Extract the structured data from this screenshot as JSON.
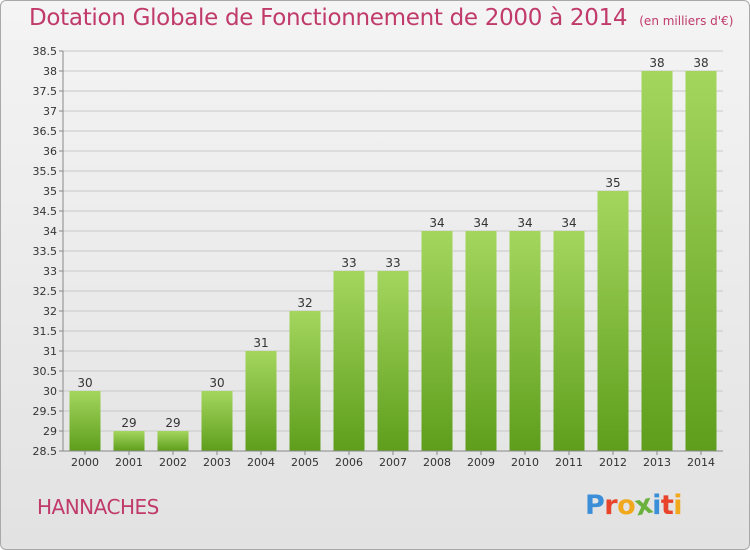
{
  "header": {
    "title": "Dotation Globale de Fonctionnement de 2000 à 2014",
    "subtitle": "(en milliers d'€)"
  },
  "footer": {
    "commune": "HANNACHES",
    "logo_letters": [
      "P",
      "r",
      "o",
      "x",
      "i",
      "t",
      "i"
    ],
    "logo_colors": [
      "#3b8fd9",
      "#e8432b",
      "#f2a81d",
      "#6ab23d",
      "#3b8fd9",
      "#e8432b",
      "#f2a81d"
    ]
  },
  "colors": {
    "bar_top": "#a4d65e",
    "bar_bottom": "#5e9e1c",
    "accent_text": "#c03a6a",
    "grid": "#c8c8c8"
  },
  "chart_data": {
    "type": "bar",
    "title": "Dotation Globale de Fonctionnement de 2000 à 2014",
    "subtitle": "(en milliers d'€)",
    "categories": [
      "2000",
      "2001",
      "2002",
      "2003",
      "2004",
      "2005",
      "2006",
      "2007",
      "2008",
      "2009",
      "2010",
      "2011",
      "2012",
      "2013",
      "2014"
    ],
    "values": [
      30,
      29,
      29,
      30,
      31,
      32,
      33,
      33,
      34,
      34,
      34,
      34,
      35,
      38,
      38
    ],
    "labels": [
      "30",
      "29",
      "29",
      "30",
      "31",
      "32",
      "33",
      "33",
      "34",
      "34",
      "34",
      "34",
      "35",
      "38",
      "38"
    ],
    "ylim": [
      28.5,
      38.5
    ],
    "yticks": [
      28.5,
      29,
      29.5,
      30,
      30.5,
      31,
      31.5,
      32,
      32.5,
      33,
      33.5,
      34,
      34.5,
      35,
      35.5,
      36,
      36.5,
      37,
      37.5,
      38,
      38.5
    ],
    "ytick_labels": [
      "28.5",
      "29",
      "29.5",
      "30",
      "30.5",
      "31",
      "31.5",
      "32",
      "32.5",
      "33",
      "33.5",
      "34",
      "34.5",
      "35",
      "35.5",
      "36",
      "36.5",
      "37",
      "37.5",
      "38",
      "38.5"
    ],
    "xlabel": "",
    "ylabel": "",
    "grid": true
  }
}
